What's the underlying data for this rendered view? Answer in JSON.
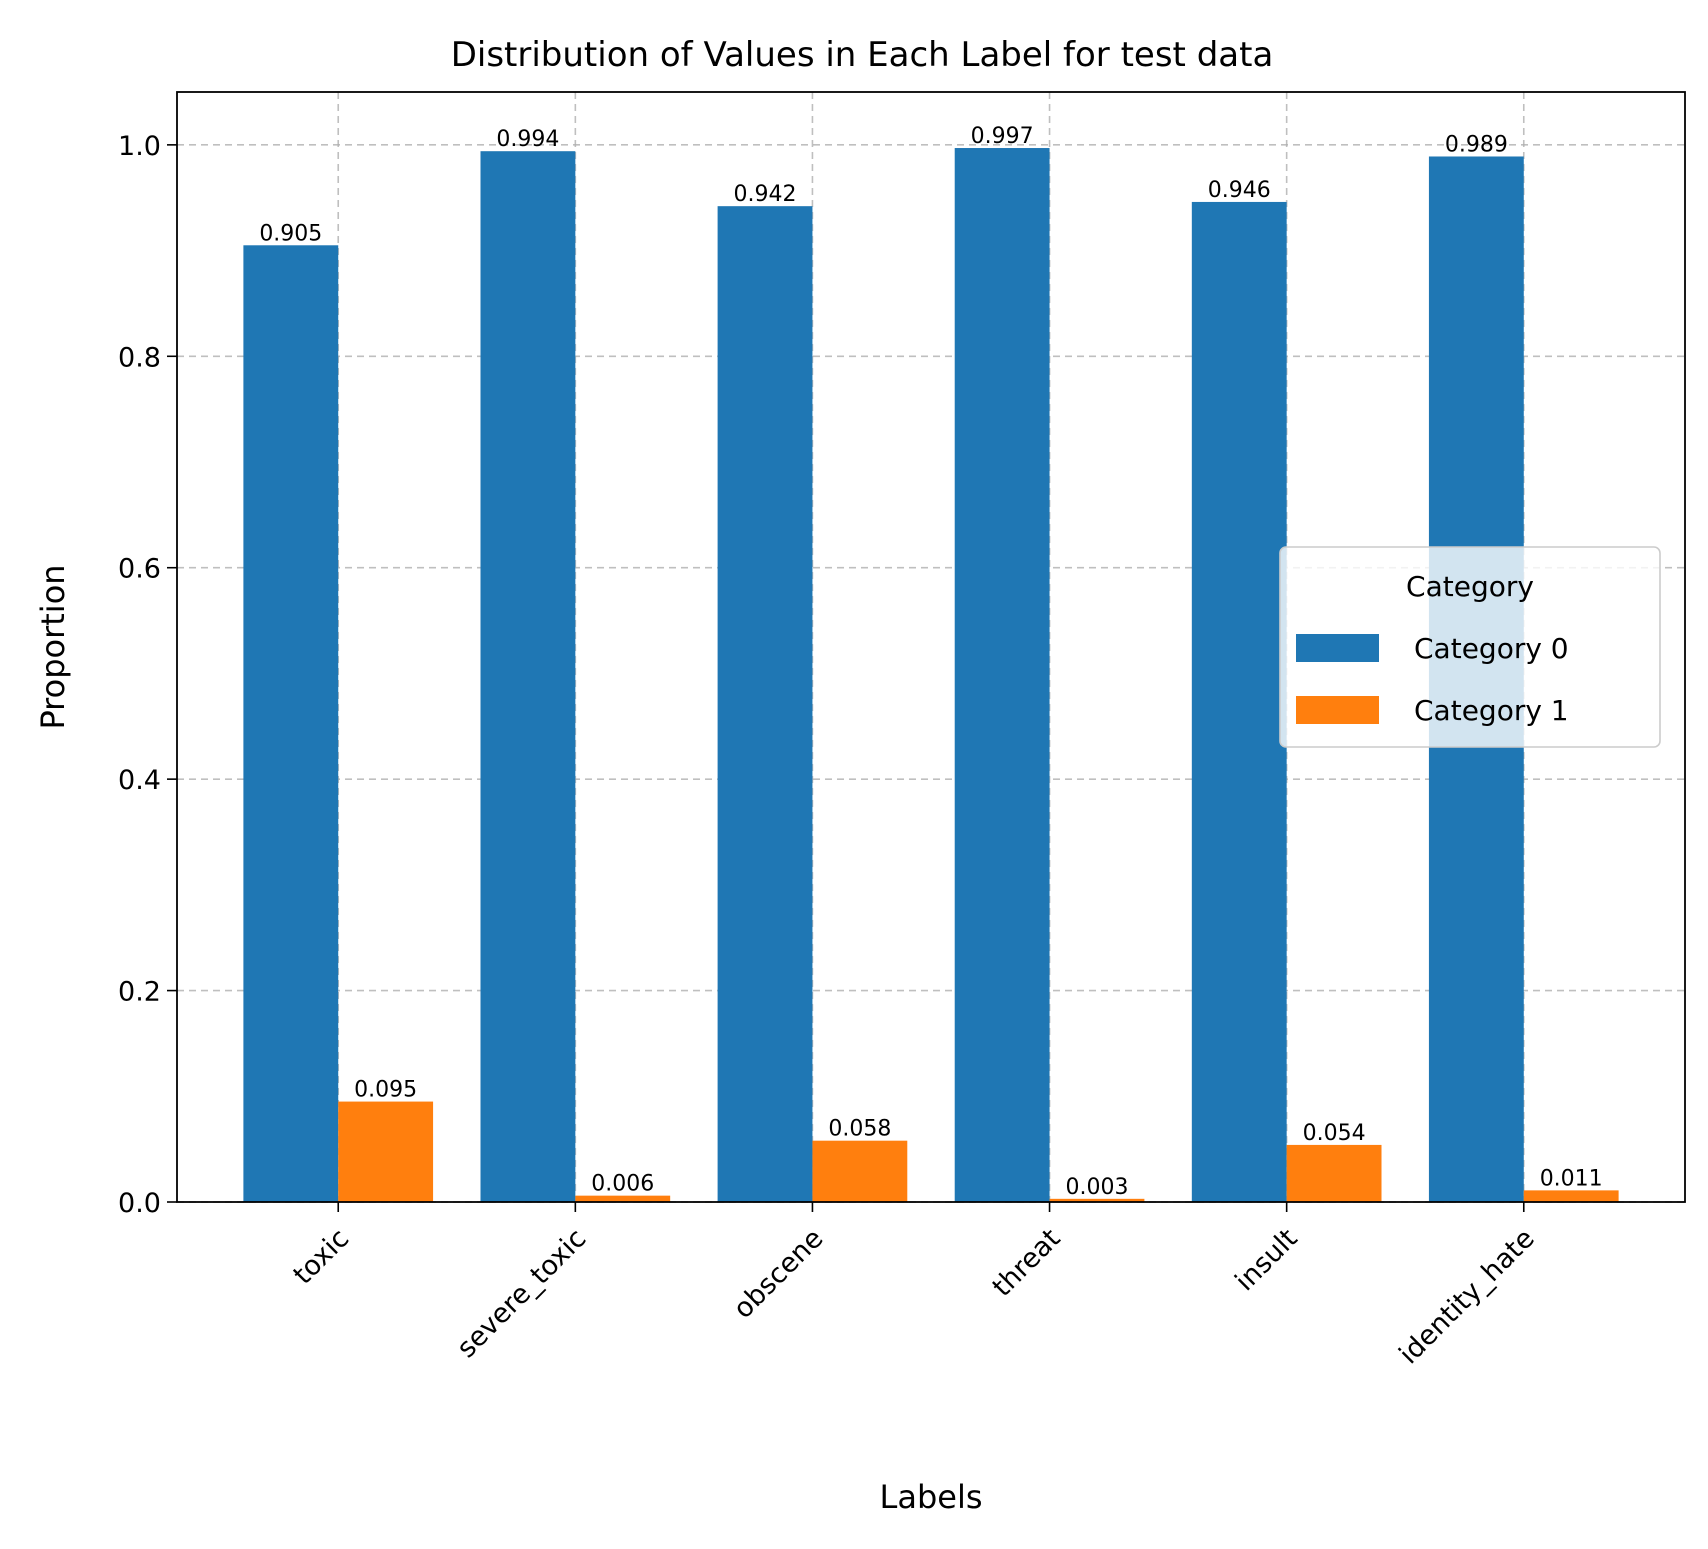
{
  "chart_data": {
    "type": "bar",
    "title": "Distribution of Values in Each Label for test data",
    "xlabel": "Labels",
    "ylabel": "Proportion",
    "categories": [
      "toxic",
      "severe_toxic",
      "obscene",
      "threat",
      "insult",
      "identity_hate"
    ],
    "series": [
      {
        "name": "Category 0",
        "color": "#1f77b4",
        "values": [
          0.905,
          0.994,
          0.942,
          0.997,
          0.946,
          0.989
        ]
      },
      {
        "name": "Category 1",
        "color": "#ff7f0e",
        "values": [
          0.095,
          0.006,
          0.058,
          0.003,
          0.054,
          0.011
        ]
      }
    ],
    "data_labels": [
      [
        "0.905",
        "0.994",
        "0.942",
        "0.997",
        "0.946",
        "0.989"
      ],
      [
        "0.095",
        "0.006",
        "0.058",
        "0.003",
        "0.054",
        "0.011"
      ]
    ],
    "ylim": [
      0,
      1.05
    ],
    "yticks": [
      0.0,
      0.2,
      0.4,
      0.6,
      0.8,
      1.0
    ],
    "ytick_labels": [
      "0.0",
      "0.2",
      "0.4",
      "0.6",
      "0.8",
      "1.0"
    ],
    "grid": true,
    "legend": {
      "title": "Category",
      "placement": "center-right"
    }
  }
}
